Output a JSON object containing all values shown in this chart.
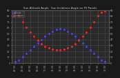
{
  "title": "Sun Altitude Angle   Sun Incidence Angle on PV Panels",
  "background_color": "#1a1a1a",
  "plot_bg_color": "#2a2a2a",
  "grid_color": "#555555",
  "hours": [
    6.0,
    6.5,
    7.0,
    7.5,
    8.0,
    8.5,
    9.0,
    9.5,
    10.0,
    10.5,
    11.0,
    11.5,
    12.0,
    12.5,
    13.0,
    13.5,
    14.0,
    14.5,
    15.0,
    15.5,
    16.0,
    16.5,
    17.0,
    17.5,
    18.0
  ],
  "sun_altitude": [
    2,
    5,
    10,
    16,
    22,
    28,
    34,
    40,
    45,
    50,
    54,
    57,
    58,
    57,
    54,
    50,
    45,
    40,
    34,
    28,
    22,
    16,
    10,
    5,
    2
  ],
  "sun_incidence": [
    88,
    80,
    70,
    60,
    52,
    45,
    38,
    32,
    28,
    25,
    23,
    22,
    22,
    23,
    25,
    28,
    32,
    38,
    45,
    52,
    60,
    70,
    80,
    86,
    88
  ],
  "altitude_color": "#4444ff",
  "incidence_color": "#ff2222",
  "ylim_left": [
    0,
    90
  ],
  "ylim_right": [
    0,
    90
  ],
  "xlim": [
    5.5,
    18.5
  ],
  "xtick_positions": [
    6,
    7,
    8,
    9,
    10,
    11,
    12,
    13,
    14,
    15,
    16,
    17,
    18
  ],
  "xtick_labels": [
    "06:00",
    "07:00",
    "08:00",
    "09:00",
    "10:00",
    "11:00",
    "12:00",
    "13:00",
    "14:00",
    "15:00",
    "16:00",
    "17:00",
    "18:00"
  ],
  "ytick_left": [
    0,
    10,
    20,
    30,
    40,
    50,
    60,
    70,
    80,
    90
  ],
  "ytick_right": [
    0,
    10,
    20,
    30,
    40,
    50,
    60,
    70,
    80,
    90
  ],
  "legend_altitude": "altitude",
  "legend_incidence": "Incidence",
  "marker_size": 1.2,
  "tick_color": "#aaaaaa",
  "tick_fontsize": 2.5,
  "title_fontsize": 2.8,
  "title_color": "#cccccc"
}
